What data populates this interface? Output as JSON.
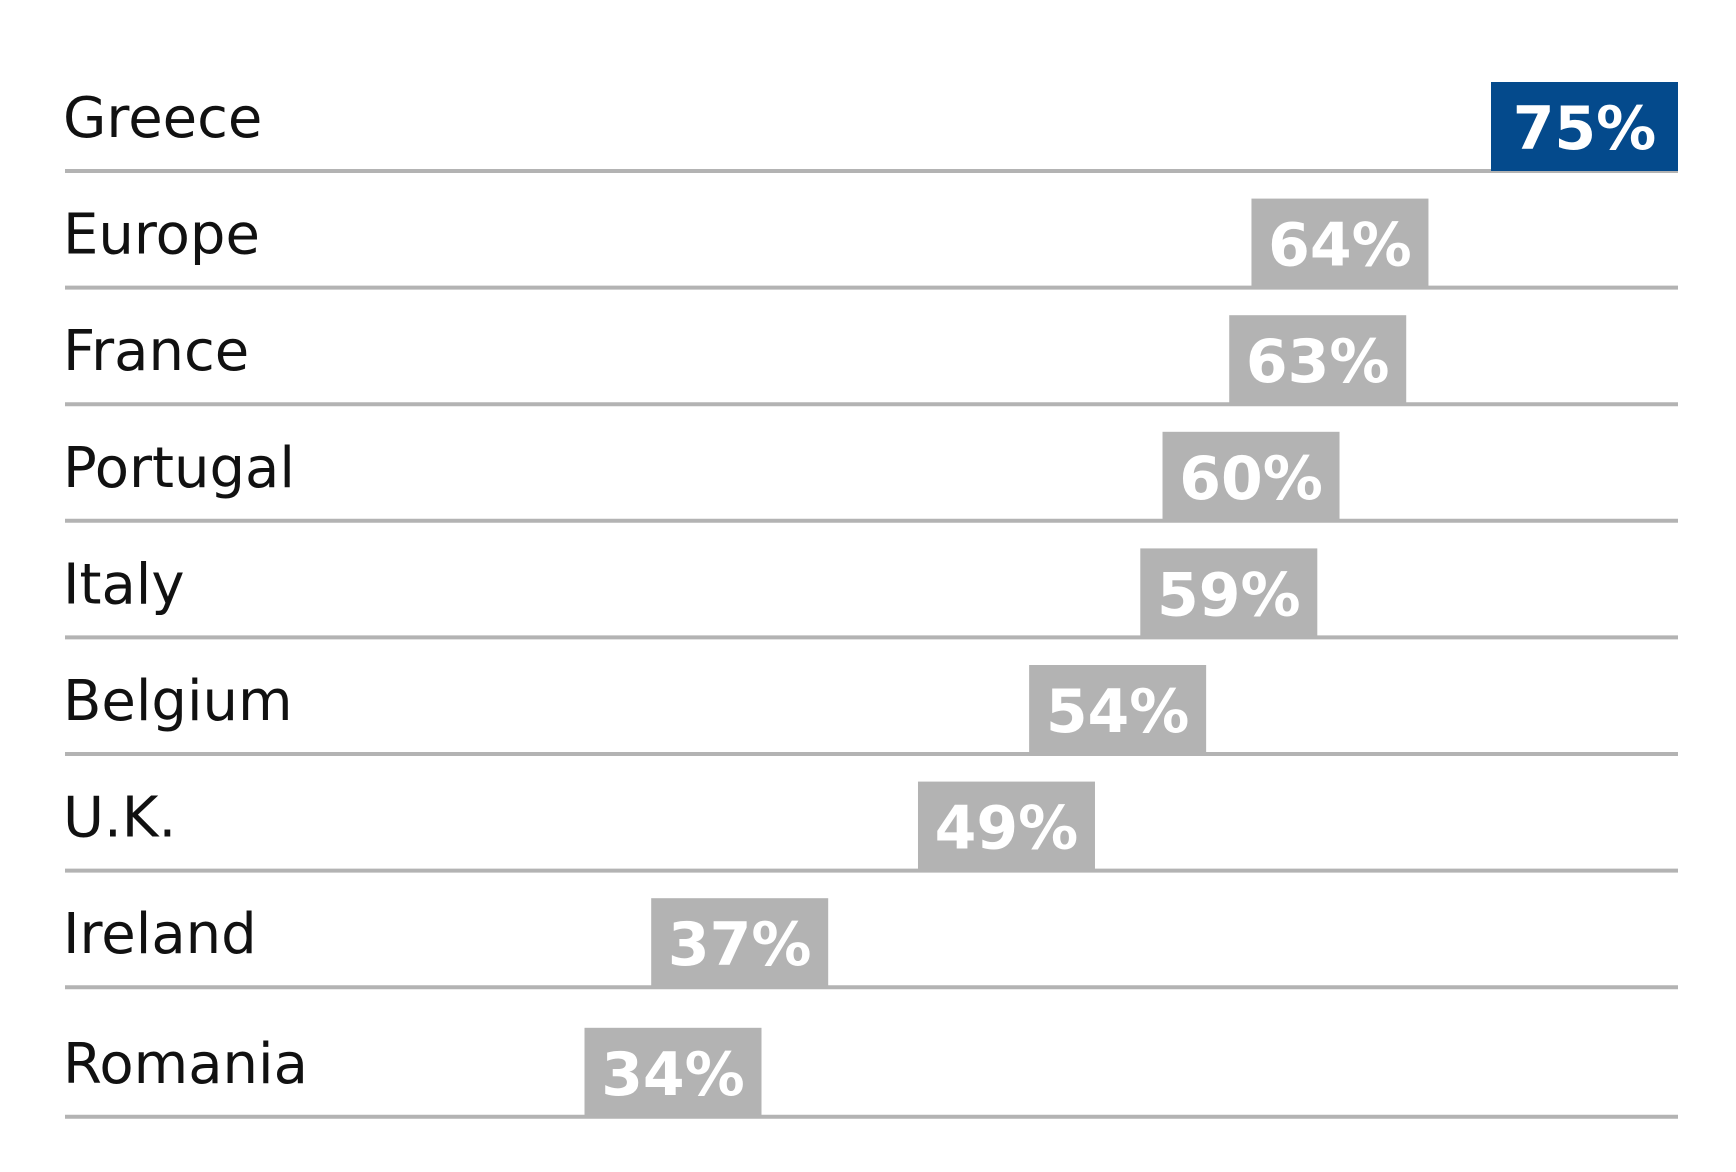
{
  "chart_data": {
    "type": "dot",
    "categories": [
      "Greece",
      "Europe",
      "France",
      "Portugal",
      "Italy",
      "Belgium",
      "U.K.",
      "Ireland",
      "Romania"
    ],
    "values": [
      75,
      64,
      63,
      60,
      59,
      54,
      49,
      37,
      34
    ],
    "value_labels": [
      "75%",
      "64%",
      "63%",
      "60%",
      "59%",
      "54%",
      "49%",
      "37%",
      "34%"
    ],
    "colors": [
      "#044a8c",
      "#b3b3b3",
      "#b3b3b3",
      "#b3b3b3",
      "#b3b3b3",
      "#b3b3b3",
      "#b3b3b3",
      "#b3b3b3",
      "#b3b3b3"
    ]
  }
}
